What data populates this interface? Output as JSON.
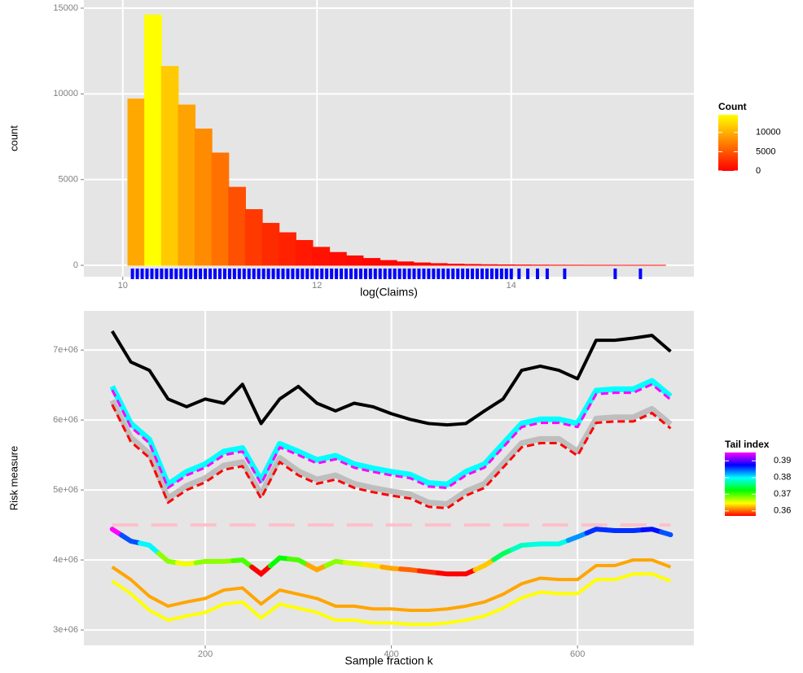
{
  "chart_data": [
    {
      "type": "histogram",
      "x_label": "log(Claims)",
      "y_label": "count",
      "bins": [
        9.88,
        10.053,
        10.226,
        10.399,
        10.572,
        10.745,
        10.918,
        11.091,
        11.264,
        11.437,
        11.61,
        11.783,
        11.956,
        12.129,
        12.302,
        12.475,
        12.648,
        12.821,
        12.994,
        13.167,
        13.34,
        13.513,
        13.686,
        13.859,
        14.032,
        14.205,
        14.378,
        14.551,
        14.724,
        14.897,
        15.07,
        15.243,
        15.416,
        15.589
      ],
      "values": [
        0,
        9700,
        14600,
        11600,
        9350,
        7950,
        6550,
        4550,
        3250,
        2450,
        1900,
        1450,
        1050,
        750,
        550,
        400,
        280,
        200,
        140,
        100,
        70,
        50,
        35,
        25,
        18,
        12,
        8,
        6,
        4,
        3,
        2,
        2,
        1
      ],
      "color_scale": [
        "#ff0000",
        "#ffff00"
      ],
      "legend": {
        "title": "Count",
        "ticks": [
          0,
          5000,
          10000
        ]
      },
      "rug": {
        "color": "#0000ff",
        "values": [
          10.1,
          10.15,
          10.2,
          10.25,
          10.3,
          10.35,
          10.4,
          10.45,
          10.5,
          10.55,
          10.6,
          10.65,
          10.7,
          10.75,
          10.8,
          10.85,
          10.9,
          10.95,
          11.0,
          11.05,
          11.1,
          11.15,
          11.2,
          11.25,
          11.3,
          11.35,
          11.4,
          11.45,
          11.5,
          11.55,
          11.6,
          11.65,
          11.7,
          11.75,
          11.8,
          11.85,
          11.9,
          11.95,
          12.0,
          12.05,
          12.1,
          12.15,
          12.2,
          12.25,
          12.3,
          12.35,
          12.4,
          12.45,
          12.5,
          12.55,
          12.6,
          12.65,
          12.7,
          12.75,
          12.8,
          12.85,
          12.9,
          12.95,
          13.0,
          13.05,
          13.1,
          13.15,
          13.2,
          13.25,
          13.3,
          13.35,
          13.4,
          13.45,
          13.5,
          13.55,
          13.6,
          13.65,
          13.7,
          13.75,
          13.8,
          13.85,
          13.9,
          13.95,
          14.0,
          14.08,
          14.17,
          14.27,
          14.37,
          14.55,
          15.07,
          15.33
        ]
      },
      "xlim": [
        9.6,
        15.88
      ],
      "ylim": [
        -664,
        15475
      ],
      "xticks": [
        10,
        12,
        14
      ],
      "yticks": [
        0,
        5000,
        10000,
        15000
      ],
      "grid": true
    },
    {
      "type": "line",
      "x_label": "Sample fraction k",
      "y_label": "Risk measure",
      "x": [
        100,
        120,
        140,
        160,
        180,
        200,
        220,
        240,
        260,
        280,
        300,
        320,
        340,
        360,
        380,
        400,
        420,
        440,
        460,
        480,
        500,
        520,
        540,
        560,
        580,
        600,
        620,
        640,
        660,
        680,
        700
      ],
      "series": [
        {
          "color": "#000000",
          "style": "solid",
          "values": [
            7270000.0,
            6830000.0,
            6710000.0,
            6300000.0,
            6190000.0,
            6300000.0,
            6240000.0,
            6510000.0,
            5950000.0,
            6300000.0,
            6480000.0,
            6240000.0,
            6130000.0,
            6240000.0,
            6190000.0,
            6090000.0,
            6010000.0,
            5950000.0,
            5930000.0,
            5950000.0,
            6130000.0,
            6300000.0,
            6710000.0,
            6770000.0,
            6710000.0,
            6590000.0,
            7140000.0,
            7140000.0,
            7170000.0,
            7210000.0,
            6980000.0
          ]
        },
        {
          "color": "#00ffff",
          "style": "solid",
          "values": [
            6480000.0,
            5950000.0,
            5720000.0,
            5080000.0,
            5260000.0,
            5370000.0,
            5550000.0,
            5600000.0,
            5140000.0,
            5660000.0,
            5550000.0,
            5430000.0,
            5490000.0,
            5370000.0,
            5310000.0,
            5260000.0,
            5220000.0,
            5100000.0,
            5080000.0,
            5260000.0,
            5370000.0,
            5660000.0,
            5950000.0,
            6010000.0,
            6010000.0,
            5950000.0,
            6420000.0,
            6440000.0,
            6440000.0,
            6560000.0,
            6340000.0
          ]
        },
        {
          "color": "#ff00ff",
          "style": "dashed",
          "values": [
            6430000.0,
            5900000.0,
            5670000.0,
            5030000.0,
            5210000.0,
            5320000.0,
            5500000.0,
            5550000.0,
            5090000.0,
            5610000.0,
            5500000.0,
            5380000.0,
            5440000.0,
            5320000.0,
            5260000.0,
            5210000.0,
            5170000.0,
            5050000.0,
            5030000.0,
            5210000.0,
            5320000.0,
            5610000.0,
            5900000.0,
            5960000.0,
            5960000.0,
            5900000.0,
            6370000.0,
            6390000.0,
            6390000.0,
            6510000.0,
            6290000.0
          ]
        },
        {
          "color": "#bebebe",
          "style": "solid",
          "values": [
            6280000.0,
            5750000.0,
            5520000.0,
            4880000.0,
            5060000.0,
            5170000.0,
            5350000.0,
            5400000.0,
            4940000.0,
            5460000.0,
            5270000.0,
            5150000.0,
            5210000.0,
            5090000.0,
            5030000.0,
            4980000.0,
            4940000.0,
            4820000.0,
            4800000.0,
            4980000.0,
            5090000.0,
            5380000.0,
            5670000.0,
            5730000.0,
            5730000.0,
            5550000.0,
            6020000.0,
            6040000.0,
            6040000.0,
            6160000.0,
            5940000.0
          ]
        },
        {
          "color": "#ff0000",
          "style": "dashed",
          "values": [
            6220000.0,
            5690000.0,
            5460000.0,
            4820000.0,
            5000000.0,
            5110000.0,
            5290000.0,
            5340000.0,
            4880000.0,
            5400000.0,
            5210000.0,
            5090000.0,
            5150000.0,
            5030000.0,
            4970000.0,
            4920000.0,
            4880000.0,
            4760000.0,
            4740000.0,
            4920000.0,
            5030000.0,
            5320000.0,
            5610000.0,
            5670000.0,
            5670000.0,
            5490000.0,
            5960000.0,
            5980000.0,
            5980000.0,
            6100000.0,
            5880000.0
          ]
        },
        {
          "style": "gradient",
          "values": [
            4440000.0,
            4270000.0,
            4210000.0,
            3980000.0,
            3940000.0,
            3980000.0,
            3980000.0,
            4000000.0,
            3800000.0,
            4030000.0,
            4000000.0,
            3860000.0,
            3980000.0,
            3950000.0,
            3920000.0,
            3880000.0,
            3860000.0,
            3830000.0,
            3800000.0,
            3800000.0,
            3920000.0,
            4090000.0,
            4210000.0,
            4230000.0,
            4230000.0,
            4330000.0,
            4440000.0,
            4420000.0,
            4420000.0,
            4440000.0,
            4360000.0
          ],
          "tail_index": [
            0.395,
            0.385,
            0.38,
            0.368,
            0.365,
            0.368,
            0.368,
            0.37,
            0.357,
            0.372,
            0.37,
            0.362,
            0.368,
            0.366,
            0.364,
            0.362,
            0.36,
            0.358,
            0.357,
            0.357,
            0.363,
            0.375,
            0.378,
            0.379,
            0.379,
            0.383,
            0.386,
            0.386,
            0.386,
            0.387,
            0.385
          ]
        },
        {
          "color": "#ffa500",
          "style": "solid",
          "values": [
            3900000.0,
            3720000.0,
            3480000.0,
            3340000.0,
            3400000.0,
            3450000.0,
            3570000.0,
            3600000.0,
            3370000.0,
            3570000.0,
            3510000.0,
            3450000.0,
            3340000.0,
            3340000.0,
            3300000.0,
            3300000.0,
            3280000.0,
            3280000.0,
            3300000.0,
            3340000.0,
            3400000.0,
            3510000.0,
            3660000.0,
            3740000.0,
            3720000.0,
            3720000.0,
            3920000.0,
            3920000.0,
            4000000.0,
            4000000.0,
            3900000.0
          ]
        },
        {
          "color": "#ffff00",
          "style": "solid",
          "values": [
            3700000.0,
            3520000.0,
            3280000.0,
            3140000.0,
            3200000.0,
            3250000.0,
            3370000.0,
            3400000.0,
            3170000.0,
            3370000.0,
            3310000.0,
            3250000.0,
            3140000.0,
            3140000.0,
            3100000.0,
            3100000.0,
            3080000.0,
            3080000.0,
            3100000.0,
            3140000.0,
            3200000.0,
            3310000.0,
            3460000.0,
            3540000.0,
            3520000.0,
            3520000.0,
            3720000.0,
            3720000.0,
            3800000.0,
            3800000.0,
            3700000.0
          ]
        }
      ],
      "hline": {
        "value": 4500000.0,
        "color": "#ffc0cb"
      },
      "color_scale": [
        "#ff0000",
        "#ffff00",
        "#00ff00",
        "#00ffff",
        "#0000ff",
        "#ff00ff"
      ],
      "legend": {
        "title": "Tail index",
        "ticks": [
          0.36,
          0.37,
          0.38,
          0.39
        ]
      },
      "xlim": [
        69.6,
        725
      ],
      "ylim": [
        2780000.0,
        7560000.0
      ],
      "xticks": [
        200,
        400,
        600
      ],
      "yticks": [
        {
          "value": 3000000,
          "label": "3e+06"
        },
        {
          "value": 4000000,
          "label": "4e+06"
        },
        {
          "value": 5000000,
          "label": "5e+06"
        },
        {
          "value": 6000000,
          "label": "6e+06"
        },
        {
          "value": 7000000,
          "label": "7e+06"
        }
      ],
      "grid": true
    }
  ]
}
